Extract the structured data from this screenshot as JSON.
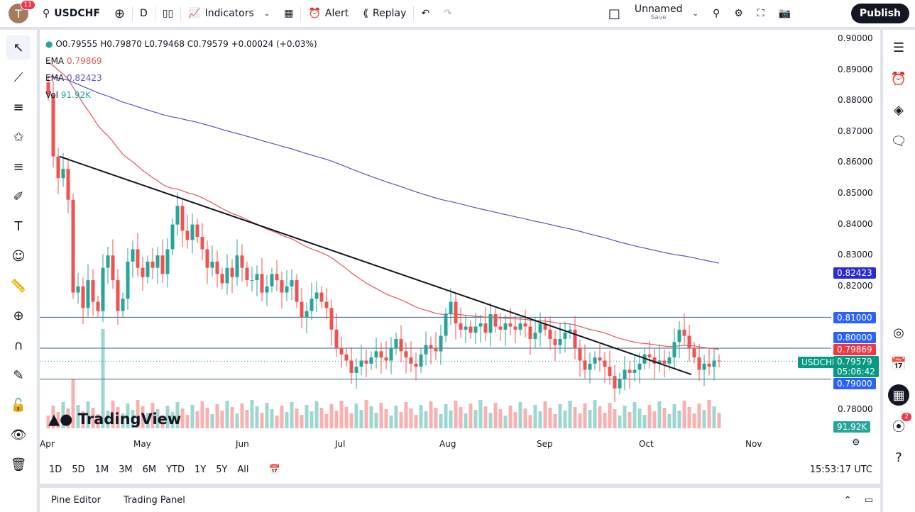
{
  "topbar": {
    "avatar_letter": "T",
    "notifications": "11",
    "symbol": "USDCHF",
    "interval": "D",
    "indicators": "Indicators",
    "alert": "Alert",
    "replay": "Replay",
    "layout_name": "Unnamed",
    "layout_save": "Save",
    "publish": "Publish"
  },
  "legend": {
    "ohlc": "O0.79555 H0.79870 L0.79468 C0.79579 +0.00024 (+0.03%)",
    "ema1_label": "EMA",
    "ema1_value": "0.79869",
    "ema2_label": "EMA",
    "ema2_value": "0.82423",
    "vol_label": "Vol",
    "vol_value": "91.92K"
  },
  "price_axis": {
    "ticks": [
      "0.90000",
      "0.89000",
      "0.88000",
      "0.87000",
      "0.86000",
      "0.85000",
      "0.84000",
      "0.83000",
      "0.82000",
      "0.78000"
    ],
    "labels": {
      "ema2": "0.82423",
      "level_81": "0.81000",
      "level_80": "0.80000",
      "ema1": "0.79869",
      "symbol": "USDCHF",
      "last": "0.79579",
      "countdown": "05:06:42",
      "level_79": "0.79000",
      "volume": "91.92K"
    }
  },
  "time_axis": {
    "months": [
      "Apr",
      "May",
      "Jun",
      "Jul",
      "Aug",
      "Sep",
      "Oct",
      "Nov"
    ]
  },
  "range_bar": {
    "ranges": [
      "1D",
      "5D",
      "1M",
      "3M",
      "6M",
      "YTD",
      "1Y",
      "5Y",
      "All"
    ],
    "clock": "15:53:17 UTC"
  },
  "bottom_panel": {
    "tabs": [
      "Pine Editor",
      "Trading Panel"
    ]
  },
  "logo": "TradingView",
  "right_sidebar": {
    "notification_count": "2"
  },
  "colors": {
    "up": "#26a69a",
    "down": "#ef5350",
    "ema_fast": "#e0575b",
    "ema_slow": "#5b55b8",
    "level": "#2962ff",
    "accent": "#2962ff"
  },
  "chart_data": {
    "type": "candlestick",
    "symbol": "USDCHF",
    "interval": "D",
    "ylim": [
      0.775,
      0.9
    ],
    "horizontal_levels": [
      0.81,
      0.8,
      0.79
    ],
    "trendline": {
      "from": 0.862,
      "to": 0.7915
    },
    "last_close": 0.79579,
    "closes": [
      0.882,
      0.862,
      0.855,
      0.858,
      0.848,
      0.818,
      0.82,
      0.813,
      0.822,
      0.815,
      0.812,
      0.826,
      0.83,
      0.822,
      0.812,
      0.816,
      0.828,
      0.832,
      0.826,
      0.823,
      0.828,
      0.826,
      0.83,
      0.824,
      0.832,
      0.84,
      0.846,
      0.838,
      0.835,
      0.84,
      0.836,
      0.832,
      0.826,
      0.828,
      0.824,
      0.821,
      0.826,
      0.823,
      0.83,
      0.826,
      0.822,
      0.822,
      0.824,
      0.818,
      0.82,
      0.824,
      0.822,
      0.818,
      0.82,
      0.822,
      0.815,
      0.81,
      0.812,
      0.816,
      0.818,
      0.815,
      0.813,
      0.806,
      0.8,
      0.798,
      0.796,
      0.792,
      0.794,
      0.796,
      0.795,
      0.797,
      0.799,
      0.797,
      0.796,
      0.8,
      0.803,
      0.799,
      0.797,
      0.795,
      0.794,
      0.798,
      0.801,
      0.8,
      0.799,
      0.804,
      0.811,
      0.815,
      0.808,
      0.806,
      0.807,
      0.805,
      0.807,
      0.808,
      0.805,
      0.811,
      0.807,
      0.806,
      0.808,
      0.807,
      0.806,
      0.808,
      0.807,
      0.803,
      0.805,
      0.808,
      0.806,
      0.803,
      0.801,
      0.803,
      0.805,
      0.806,
      0.8,
      0.796,
      0.793,
      0.795,
      0.797,
      0.796,
      0.794,
      0.791,
      0.787,
      0.79,
      0.793,
      0.792,
      0.793,
      0.795,
      0.798,
      0.797,
      0.795,
      0.796,
      0.795,
      0.797,
      0.802,
      0.806,
      0.804,
      0.8,
      0.797,
      0.793,
      0.795,
      0.794,
      0.796,
      0.79579
    ]
  }
}
